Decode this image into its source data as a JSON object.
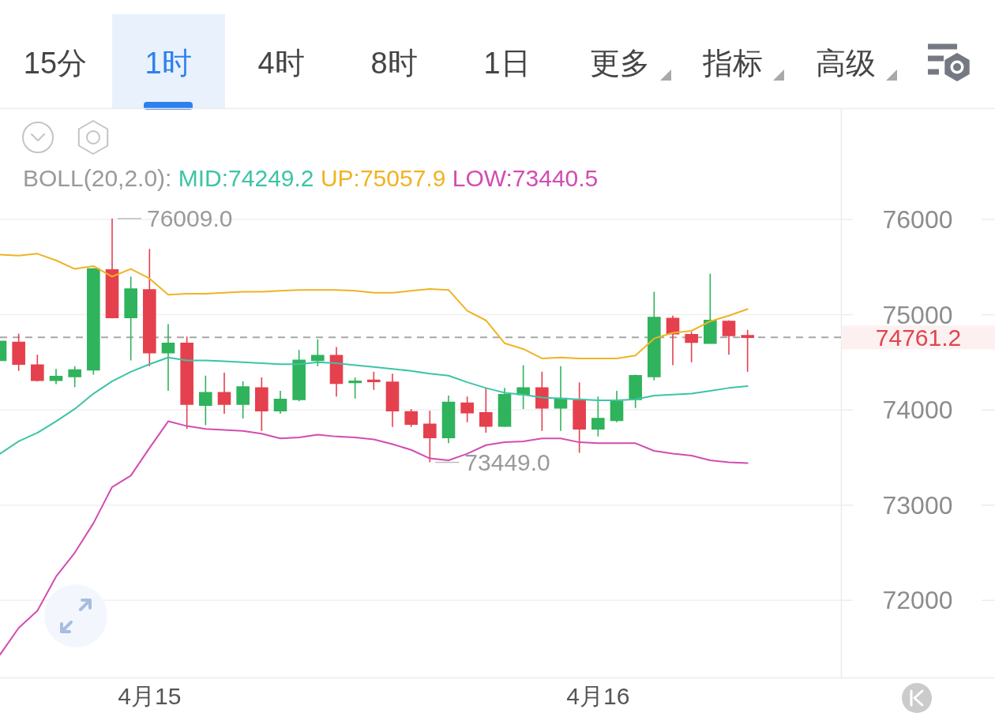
{
  "chart_data": [
    {
      "type": "other",
      "annotations": [
        "15分",
        "1时",
        "4时",
        "8时",
        "1日",
        "更多",
        "指标",
        "高级"
      ]
    },
    {
      "type": "candlestick",
      "annotations": [
        "76009.0",
        "73449.0"
      ],
      "categories": [
        null,
        null,
        null,
        null,
        null,
        null,
        null,
        null,
        "4月15",
        null,
        null,
        null,
        null,
        null,
        null,
        null,
        null,
        null,
        null,
        null,
        null,
        null,
        null,
        null,
        null,
        null,
        null,
        null,
        null,
        null,
        null,
        null,
        "4月16",
        null,
        null,
        null,
        null,
        null,
        null,
        null,
        null
      ],
      "ohlc": [
        [
          74520,
          74720,
          74520,
          74720
        ],
        [
          74710,
          74800,
          74410,
          74480
        ],
        [
          74470,
          74580,
          74300,
          74310
        ],
        [
          74310,
          74430,
          74270,
          74350
        ],
        [
          74350,
          74460,
          74240,
          74420
        ],
        [
          74420,
          75490,
          74370,
          75480
        ],
        [
          75470,
          76009,
          74960,
          74970
        ],
        [
          74970,
          75400,
          74520,
          75270
        ],
        [
          75260,
          75690,
          74460,
          74600
        ],
        [
          74600,
          74900,
          74200,
          74700
        ],
        [
          74700,
          74770,
          73800,
          74060
        ],
        [
          74050,
          74360,
          73840,
          74180
        ],
        [
          74180,
          74390,
          73960,
          74060
        ],
        [
          74060,
          74300,
          73910,
          74240
        ],
        [
          74230,
          74340,
          73780,
          73990
        ],
        [
          73990,
          74200,
          73960,
          74110
        ],
        [
          74110,
          74630,
          74090,
          74520
        ],
        [
          74520,
          74740,
          74460,
          74570
        ],
        [
          74570,
          74660,
          74140,
          74280
        ],
        [
          74290,
          74340,
          74120,
          74300
        ],
        [
          74310,
          74400,
          74210,
          74300
        ],
        [
          74290,
          74380,
          73820,
          73990
        ],
        [
          73980,
          74010,
          73820,
          73850
        ],
        [
          73850,
          73990,
          73449,
          73710
        ],
        [
          73710,
          74150,
          73650,
          74080
        ],
        [
          74070,
          74140,
          73870,
          73970
        ],
        [
          73970,
          74230,
          73760,
          73830
        ],
        [
          73830,
          74230,
          73820,
          74160
        ],
        [
          74160,
          74470,
          74010,
          74230
        ],
        [
          74230,
          74400,
          73780,
          74020
        ],
        [
          74020,
          74460,
          73780,
          74120
        ],
        [
          74100,
          74290,
          73550,
          73800
        ],
        [
          73800,
          74140,
          73720,
          73910
        ],
        [
          73890,
          74200,
          73870,
          74090
        ],
        [
          74110,
          74370,
          74020,
          74360
        ],
        [
          74350,
          75240,
          74310,
          74970
        ],
        [
          74960,
          74990,
          74470,
          74800
        ],
        [
          74790,
          74820,
          74500,
          74710
        ],
        [
          74700,
          75430,
          74700,
          74940
        ],
        [
          74930,
          74940,
          74580,
          74780
        ],
        [
          74780,
          74840,
          74400,
          74761.2
        ]
      ],
      "colors": [
        "#2fb35c",
        "#e5404e",
        "#e5404e",
        "#2fb35c",
        "#2fb35c",
        "#2fb35c",
        "#e5404e",
        "#2fb35c",
        "#e5404e",
        "#2fb35c",
        "#e5404e",
        "#2fb35c",
        "#e5404e",
        "#2fb35c",
        "#e5404e",
        "#2fb35c",
        "#2fb35c",
        "#2fb35c",
        "#e5404e",
        "#2fb35c",
        "#e5404e",
        "#e5404e",
        "#e5404e",
        "#e5404e",
        "#2fb35c",
        "#e5404e",
        "#e5404e",
        "#2fb35c",
        "#2fb35c",
        "#e5404e",
        "#2fb35c",
        "#e5404e",
        "#2fb35c",
        "#2fb35c",
        "#2fb35c",
        "#2fb35c",
        "#e5404e",
        "#e5404e",
        "#2fb35c",
        "#e5404e",
        "#e5404e"
      ],
      "legend_title": "BOLL(20,2.0):",
      "legend": "top",
      "series": [
        {
          "name": "MID:74249.2",
          "type": "line",
          "color": "#3cc4a6",
          "values": [
            73540,
            73670,
            73760,
            73880,
            74010,
            74170,
            74300,
            74400,
            74480,
            74550,
            74520,
            74520,
            74510,
            74500,
            74490,
            74480,
            74480,
            74500,
            74490,
            74470,
            74450,
            74430,
            74410,
            74380,
            74360,
            74290,
            74230,
            74180,
            74160,
            74130,
            74120,
            74110,
            74100,
            74100,
            74110,
            74150,
            74160,
            74170,
            74200,
            74230,
            74249.2
          ]
        },
        {
          "name": "UP:75057.9",
          "type": "line",
          "color": "#f0b323",
          "values": [
            75630,
            75620,
            75640,
            75570,
            75480,
            75510,
            75400,
            75480,
            75380,
            75210,
            75220,
            75220,
            75230,
            75240,
            75240,
            75250,
            75260,
            75260,
            75260,
            75250,
            75230,
            75230,
            75250,
            75270,
            75260,
            75040,
            74940,
            74700,
            74640,
            74540,
            74550,
            74540,
            74540,
            74540,
            74570,
            74750,
            74810,
            74830,
            74930,
            74990,
            75057.9
          ]
        },
        {
          "name": "LOW:73440.5",
          "type": "line",
          "color": "#d24cb2",
          "values": [
            71430,
            71710,
            71890,
            72250,
            72500,
            72810,
            73190,
            73310,
            73600,
            73880,
            73830,
            73800,
            73790,
            73780,
            73750,
            73700,
            73710,
            73740,
            73720,
            73710,
            73690,
            73640,
            73580,
            73490,
            73470,
            73540,
            73630,
            73660,
            73670,
            73700,
            73700,
            73660,
            73650,
            73650,
            73650,
            73570,
            73540,
            73520,
            73470,
            73450,
            73440.5
          ]
        }
      ],
      "ylim": [
        71190,
        77160
      ],
      "yticks": [
        72000,
        73000,
        74000,
        75000,
        76000
      ],
      "grid": "y",
      "ref_lines": [
        {
          "axis": "y",
          "value": 74761.2,
          "label": "74761.2",
          "color": "#a8a8a8",
          "line_style": "dashed"
        }
      ]
    }
  ]
}
